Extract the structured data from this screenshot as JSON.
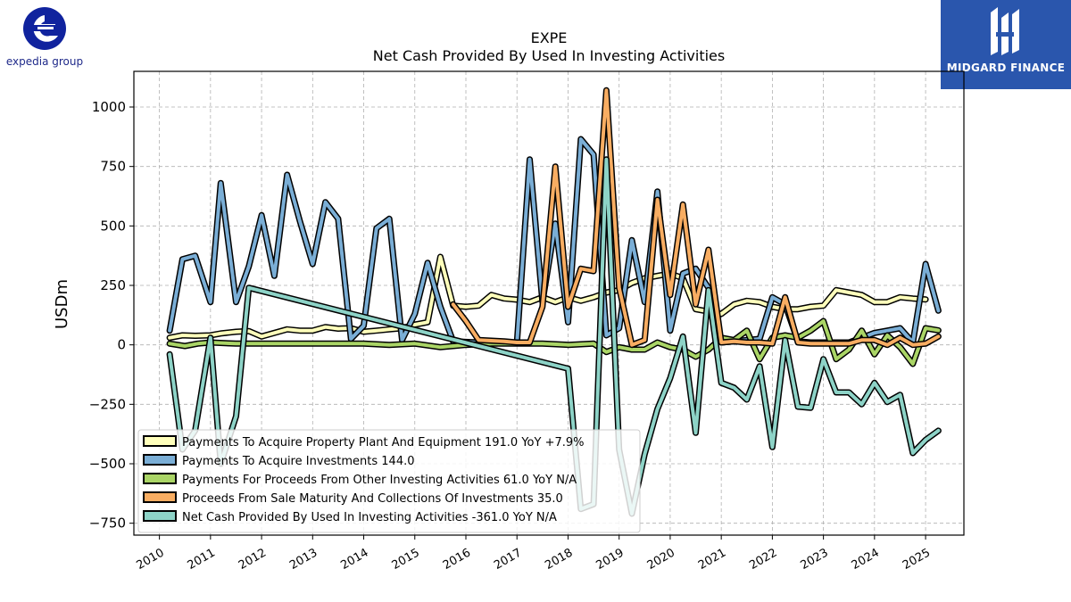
{
  "logos": {
    "left_text": "expedia group",
    "right_text": "MIDGARD FINANCE",
    "left_color": "#10239e",
    "right_bg": "#2a56ad"
  },
  "chart_data": {
    "type": "line",
    "title": "EXPE",
    "subtitle": "Net Cash Provided By Used In Investing Activities",
    "ylabel": "USDm",
    "xlabel": "",
    "ylim": [
      -800,
      1150
    ],
    "xlim": [
      2009.5,
      2025.75
    ],
    "yticks": [
      -750,
      -500,
      -250,
      0,
      250,
      500,
      750,
      1000
    ],
    "ytick_labels": [
      "−750",
      "−500",
      "−250",
      "0",
      "250",
      "500",
      "750",
      "1000"
    ],
    "xticks": [
      2010,
      2011,
      2012,
      2013,
      2014,
      2015,
      2016,
      2017,
      2018,
      2019,
      2020,
      2021,
      2022,
      2023,
      2024,
      2025
    ],
    "xtick_labels": [
      "2010",
      "2011",
      "2012",
      "2013",
      "2014",
      "2015",
      "2016",
      "2017",
      "2018",
      "2019",
      "2020",
      "2021",
      "2022",
      "2023",
      "2024",
      "2025"
    ],
    "grid": true,
    "legend_position": "lower-left",
    "series": [
      {
        "name": "Payments To Acquire Property Plant And Equipment",
        "legend_label": "Payments To Acquire Property Plant And Equipment  191.0 YoY +7.9%",
        "color": "#ffffbb",
        "points": [
          [
            2010.2,
            30
          ],
          [
            2010.45,
            40
          ],
          [
            2010.7,
            38
          ],
          [
            2011.0,
            40
          ],
          [
            2011.2,
            48
          ],
          [
            2011.5,
            55
          ],
          [
            2011.75,
            58
          ],
          [
            2012.0,
            35
          ],
          [
            2012.25,
            50
          ],
          [
            2012.5,
            65
          ],
          [
            2012.75,
            60
          ],
          [
            2013.0,
            60
          ],
          [
            2013.25,
            75
          ],
          [
            2013.5,
            68
          ],
          [
            2013.75,
            70
          ],
          [
            2014.0,
            55
          ],
          [
            2014.25,
            60
          ],
          [
            2014.5,
            65
          ],
          [
            2014.75,
            70
          ],
          [
            2015.0,
            85
          ],
          [
            2015.25,
            95
          ],
          [
            2015.5,
            370
          ],
          [
            2015.75,
            165
          ],
          [
            2016.0,
            160
          ],
          [
            2016.25,
            165
          ],
          [
            2016.5,
            210
          ],
          [
            2016.75,
            195
          ],
          [
            2017.0,
            190
          ],
          [
            2017.25,
            180
          ],
          [
            2017.5,
            200
          ],
          [
            2017.75,
            180
          ],
          [
            2018.0,
            200
          ],
          [
            2018.25,
            185
          ],
          [
            2018.5,
            200
          ],
          [
            2018.75,
            220
          ],
          [
            2019.0,
            230
          ],
          [
            2019.25,
            260
          ],
          [
            2019.5,
            280
          ],
          [
            2019.75,
            290
          ],
          [
            2020.0,
            300
          ],
          [
            2020.25,
            280
          ],
          [
            2020.5,
            150
          ],
          [
            2020.75,
            140
          ],
          [
            2021.0,
            130
          ],
          [
            2021.25,
            170
          ],
          [
            2021.5,
            185
          ],
          [
            2021.75,
            180
          ],
          [
            2022.0,
            160
          ],
          [
            2022.25,
            150
          ],
          [
            2022.5,
            150
          ],
          [
            2022.75,
            160
          ],
          [
            2023.0,
            165
          ],
          [
            2023.25,
            230
          ],
          [
            2023.5,
            220
          ],
          [
            2023.75,
            210
          ],
          [
            2024.0,
            180
          ],
          [
            2024.25,
            180
          ],
          [
            2024.5,
            200
          ],
          [
            2024.75,
            195
          ],
          [
            2025.0,
            191
          ]
        ]
      },
      {
        "name": "Payments To Acquire Investments",
        "legend_label": "Payments To Acquire Investments  144.0",
        "color": "#7aaed6",
        "points": [
          [
            2010.2,
            60
          ],
          [
            2010.45,
            360
          ],
          [
            2010.7,
            375
          ],
          [
            2011.0,
            180
          ],
          [
            2011.2,
            680
          ],
          [
            2011.5,
            180
          ],
          [
            2011.75,
            330
          ],
          [
            2012.0,
            545
          ],
          [
            2012.25,
            290
          ],
          [
            2012.5,
            715
          ],
          [
            2012.75,
            520
          ],
          [
            2013.0,
            340
          ],
          [
            2013.25,
            600
          ],
          [
            2013.5,
            530
          ],
          [
            2013.75,
            25
          ],
          [
            2014.0,
            80
          ],
          [
            2014.25,
            490
          ],
          [
            2014.5,
            530
          ],
          [
            2014.75,
            20
          ],
          [
            2015.0,
            130
          ],
          [
            2015.25,
            345
          ],
          [
            2015.5,
            160
          ],
          [
            2015.75,
            15
          ],
          [
            2016.25,
            10
          ],
          [
            2016.5,
            10
          ],
          [
            2016.75,
            10
          ],
          [
            2017.0,
            10
          ],
          [
            2017.25,
            780
          ],
          [
            2017.5,
            180
          ],
          [
            2017.75,
            510
          ],
          [
            2018.0,
            95
          ],
          [
            2018.25,
            865
          ],
          [
            2018.5,
            800
          ],
          [
            2018.75,
            40
          ],
          [
            2019.0,
            70
          ],
          [
            2019.25,
            440
          ],
          [
            2019.5,
            180
          ],
          [
            2019.75,
            645
          ],
          [
            2020.0,
            60
          ],
          [
            2020.25,
            300
          ],
          [
            2020.5,
            320
          ],
          [
            2020.75,
            240
          ],
          [
            2021.0,
            10
          ],
          [
            2021.25,
            15
          ],
          [
            2021.5,
            20
          ],
          [
            2021.75,
            25
          ],
          [
            2022.0,
            200
          ],
          [
            2022.25,
            170
          ],
          [
            2022.5,
            15
          ],
          [
            2022.75,
            10
          ],
          [
            2023.0,
            10
          ],
          [
            2023.25,
            10
          ],
          [
            2023.5,
            10
          ],
          [
            2023.75,
            30
          ],
          [
            2024.0,
            50
          ],
          [
            2024.25,
            60
          ],
          [
            2024.5,
            70
          ],
          [
            2024.75,
            10
          ],
          [
            2025.0,
            340
          ],
          [
            2025.25,
            144
          ]
        ]
      },
      {
        "name": "Payments For Proceeds From Other Investing Activities",
        "legend_label": "Payments For Proceeds From Other Investing Activities  61.0 YoY N/A",
        "color": "#aad566",
        "points": [
          [
            2010.2,
            5
          ],
          [
            2010.5,
            -5
          ],
          [
            2010.75,
            5
          ],
          [
            2011.0,
            10
          ],
          [
            2011.5,
            5
          ],
          [
            2012.0,
            5
          ],
          [
            2012.5,
            5
          ],
          [
            2013.0,
            5
          ],
          [
            2013.5,
            5
          ],
          [
            2014.0,
            5
          ],
          [
            2014.5,
            0
          ],
          [
            2015.0,
            5
          ],
          [
            2015.5,
            -10
          ],
          [
            2016.0,
            0
          ],
          [
            2016.5,
            5
          ],
          [
            2017.0,
            5
          ],
          [
            2017.5,
            5
          ],
          [
            2018.0,
            0
          ],
          [
            2018.5,
            5
          ],
          [
            2018.75,
            -30
          ],
          [
            2019.0,
            -10
          ],
          [
            2019.25,
            -20
          ],
          [
            2019.5,
            -20
          ],
          [
            2019.75,
            10
          ],
          [
            2020.0,
            -10
          ],
          [
            2020.25,
            -20
          ],
          [
            2020.5,
            -50
          ],
          [
            2020.75,
            -20
          ],
          [
            2021.0,
            30
          ],
          [
            2021.25,
            20
          ],
          [
            2021.5,
            60
          ],
          [
            2021.75,
            -60
          ],
          [
            2022.0,
            30
          ],
          [
            2022.25,
            40
          ],
          [
            2022.5,
            30
          ],
          [
            2022.75,
            60
          ],
          [
            2023.0,
            100
          ],
          [
            2023.25,
            -60
          ],
          [
            2023.5,
            -20
          ],
          [
            2023.75,
            60
          ],
          [
            2024.0,
            -40
          ],
          [
            2024.25,
            40
          ],
          [
            2024.5,
            -10
          ],
          [
            2024.75,
            -80
          ],
          [
            2025.0,
            70
          ],
          [
            2025.25,
            61
          ]
        ]
      },
      {
        "name": "Proceeds From Sale Maturity And Collections Of Investments",
        "legend_label": "Proceeds From Sale Maturity And Collections Of Investments  35.0",
        "color": "#f8ad62",
        "points": [
          [
            2015.75,
            170
          ],
          [
            2016.0,
            100
          ],
          [
            2016.25,
            20
          ],
          [
            2016.75,
            15
          ],
          [
            2017.0,
            10
          ],
          [
            2017.25,
            10
          ],
          [
            2017.5,
            160
          ],
          [
            2017.75,
            750
          ],
          [
            2018.0,
            160
          ],
          [
            2018.25,
            320
          ],
          [
            2018.5,
            310
          ],
          [
            2018.75,
            1070
          ],
          [
            2019.0,
            240
          ],
          [
            2019.25,
            0
          ],
          [
            2019.5,
            20
          ],
          [
            2019.75,
            610
          ],
          [
            2020.0,
            210
          ],
          [
            2020.25,
            590
          ],
          [
            2020.5,
            170
          ],
          [
            2020.75,
            400
          ],
          [
            2021.0,
            10
          ],
          [
            2021.25,
            15
          ],
          [
            2021.5,
            10
          ],
          [
            2021.75,
            10
          ],
          [
            2022.0,
            5
          ],
          [
            2022.25,
            200
          ],
          [
            2022.5,
            10
          ],
          [
            2022.75,
            5
          ],
          [
            2023.0,
            5
          ],
          [
            2023.25,
            5
          ],
          [
            2023.5,
            5
          ],
          [
            2023.75,
            20
          ],
          [
            2024.0,
            20
          ],
          [
            2024.25,
            0
          ],
          [
            2024.5,
            30
          ],
          [
            2024.75,
            0
          ],
          [
            2025.0,
            5
          ],
          [
            2025.25,
            35
          ]
        ]
      },
      {
        "name": "Net Cash Provided By Used In Investing Activities",
        "legend_label": "Net Cash Provided By Used In Investing Activities  -361.0 YoY N/A",
        "color": "#8dd3c7",
        "points": [
          [
            2010.2,
            -40
          ],
          [
            2010.45,
            -440
          ],
          [
            2010.7,
            -360
          ],
          [
            2011.0,
            30
          ],
          [
            2011.2,
            -500
          ],
          [
            2011.5,
            -300
          ],
          [
            2011.75,
            240
          ],
          [
            2018.0,
            -100
          ],
          [
            2018.25,
            -690
          ],
          [
            2018.5,
            -670
          ],
          [
            2018.75,
            780
          ],
          [
            2019.0,
            -440
          ],
          [
            2019.25,
            -710
          ],
          [
            2019.5,
            -460
          ],
          [
            2019.75,
            -270
          ],
          [
            2020.0,
            -140
          ],
          [
            2020.25,
            35
          ],
          [
            2020.5,
            -370
          ],
          [
            2020.75,
            230
          ],
          [
            2021.0,
            -160
          ],
          [
            2021.25,
            -180
          ],
          [
            2021.5,
            -230
          ],
          [
            2021.75,
            -90
          ],
          [
            2022.0,
            -430
          ],
          [
            2022.25,
            20
          ],
          [
            2022.5,
            -260
          ],
          [
            2022.75,
            -265
          ],
          [
            2023.0,
            -60
          ],
          [
            2023.25,
            -200
          ],
          [
            2023.5,
            -200
          ],
          [
            2023.75,
            -250
          ],
          [
            2024.0,
            -160
          ],
          [
            2024.25,
            -240
          ],
          [
            2024.5,
            -210
          ],
          [
            2024.75,
            -455
          ],
          [
            2025.0,
            -400
          ],
          [
            2025.25,
            -361
          ]
        ]
      }
    ]
  }
}
